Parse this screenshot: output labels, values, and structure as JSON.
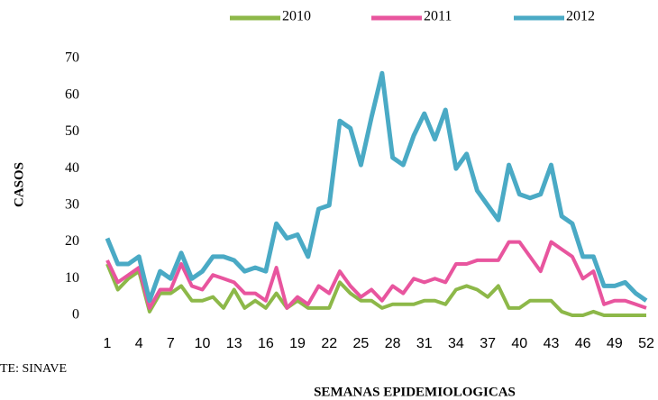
{
  "chart_data": {
    "type": "line",
    "xlabel": "SEMANAS EPIDEMIOLOGICAS",
    "ylabel": "CASOS",
    "source": "TE: SINAVE",
    "x": [
      1,
      2,
      3,
      4,
      5,
      6,
      7,
      8,
      9,
      10,
      11,
      12,
      13,
      14,
      15,
      16,
      17,
      18,
      19,
      20,
      21,
      22,
      23,
      24,
      25,
      26,
      27,
      28,
      29,
      30,
      31,
      32,
      33,
      34,
      35,
      36,
      37,
      38,
      39,
      40,
      41,
      42,
      43,
      44,
      45,
      46,
      47,
      48,
      49,
      50,
      51,
      52
    ],
    "xlim": [
      1,
      52
    ],
    "xticks": [
      1,
      4,
      7,
      10,
      13,
      16,
      19,
      22,
      25,
      28,
      31,
      34,
      37,
      40,
      43,
      46,
      49,
      52
    ],
    "ylim": [
      0,
      70
    ],
    "yticks": [
      0,
      10,
      20,
      30,
      40,
      50,
      60,
      70
    ],
    "grid": false,
    "legend": "top",
    "series": [
      {
        "name": "2010",
        "color": "#8db849",
        "values": [
          14,
          7,
          10,
          12,
          1,
          6,
          6,
          8,
          4,
          4,
          5,
          2,
          7,
          2,
          4,
          2,
          6,
          2,
          4,
          2,
          2,
          2,
          9,
          6,
          4,
          4,
          2,
          3,
          3,
          3,
          4,
          4,
          3,
          7,
          8,
          7,
          5,
          8,
          2,
          2,
          4,
          4,
          4,
          1,
          0,
          0,
          1,
          0,
          0,
          0,
          0,
          0
        ]
      },
      {
        "name": "2011",
        "color": "#e8559e",
        "values": [
          15,
          9,
          11,
          13,
          2,
          7,
          7,
          14,
          8,
          7,
          11,
          10,
          9,
          6,
          6,
          4,
          13,
          2,
          5,
          3,
          8,
          6,
          12,
          8,
          5,
          7,
          4,
          8,
          6,
          10,
          9,
          10,
          9,
          14,
          14,
          15,
          15,
          15,
          20,
          20,
          16,
          12,
          20,
          18,
          16,
          10,
          12,
          3,
          4,
          4,
          3,
          2
        ]
      },
      {
        "name": "2012",
        "color": "#4aaac5",
        "values": [
          21,
          14,
          14,
          16,
          4,
          12,
          10,
          17,
          10,
          12,
          16,
          16,
          15,
          12,
          13,
          12,
          25,
          21,
          22,
          16,
          29,
          30,
          53,
          51,
          41,
          54,
          66,
          43,
          41,
          49,
          55,
          48,
          56,
          40,
          44,
          34,
          30,
          26,
          41,
          33,
          32,
          33,
          41,
          27,
          25,
          16,
          16,
          8,
          8,
          9,
          6,
          4
        ]
      }
    ]
  }
}
